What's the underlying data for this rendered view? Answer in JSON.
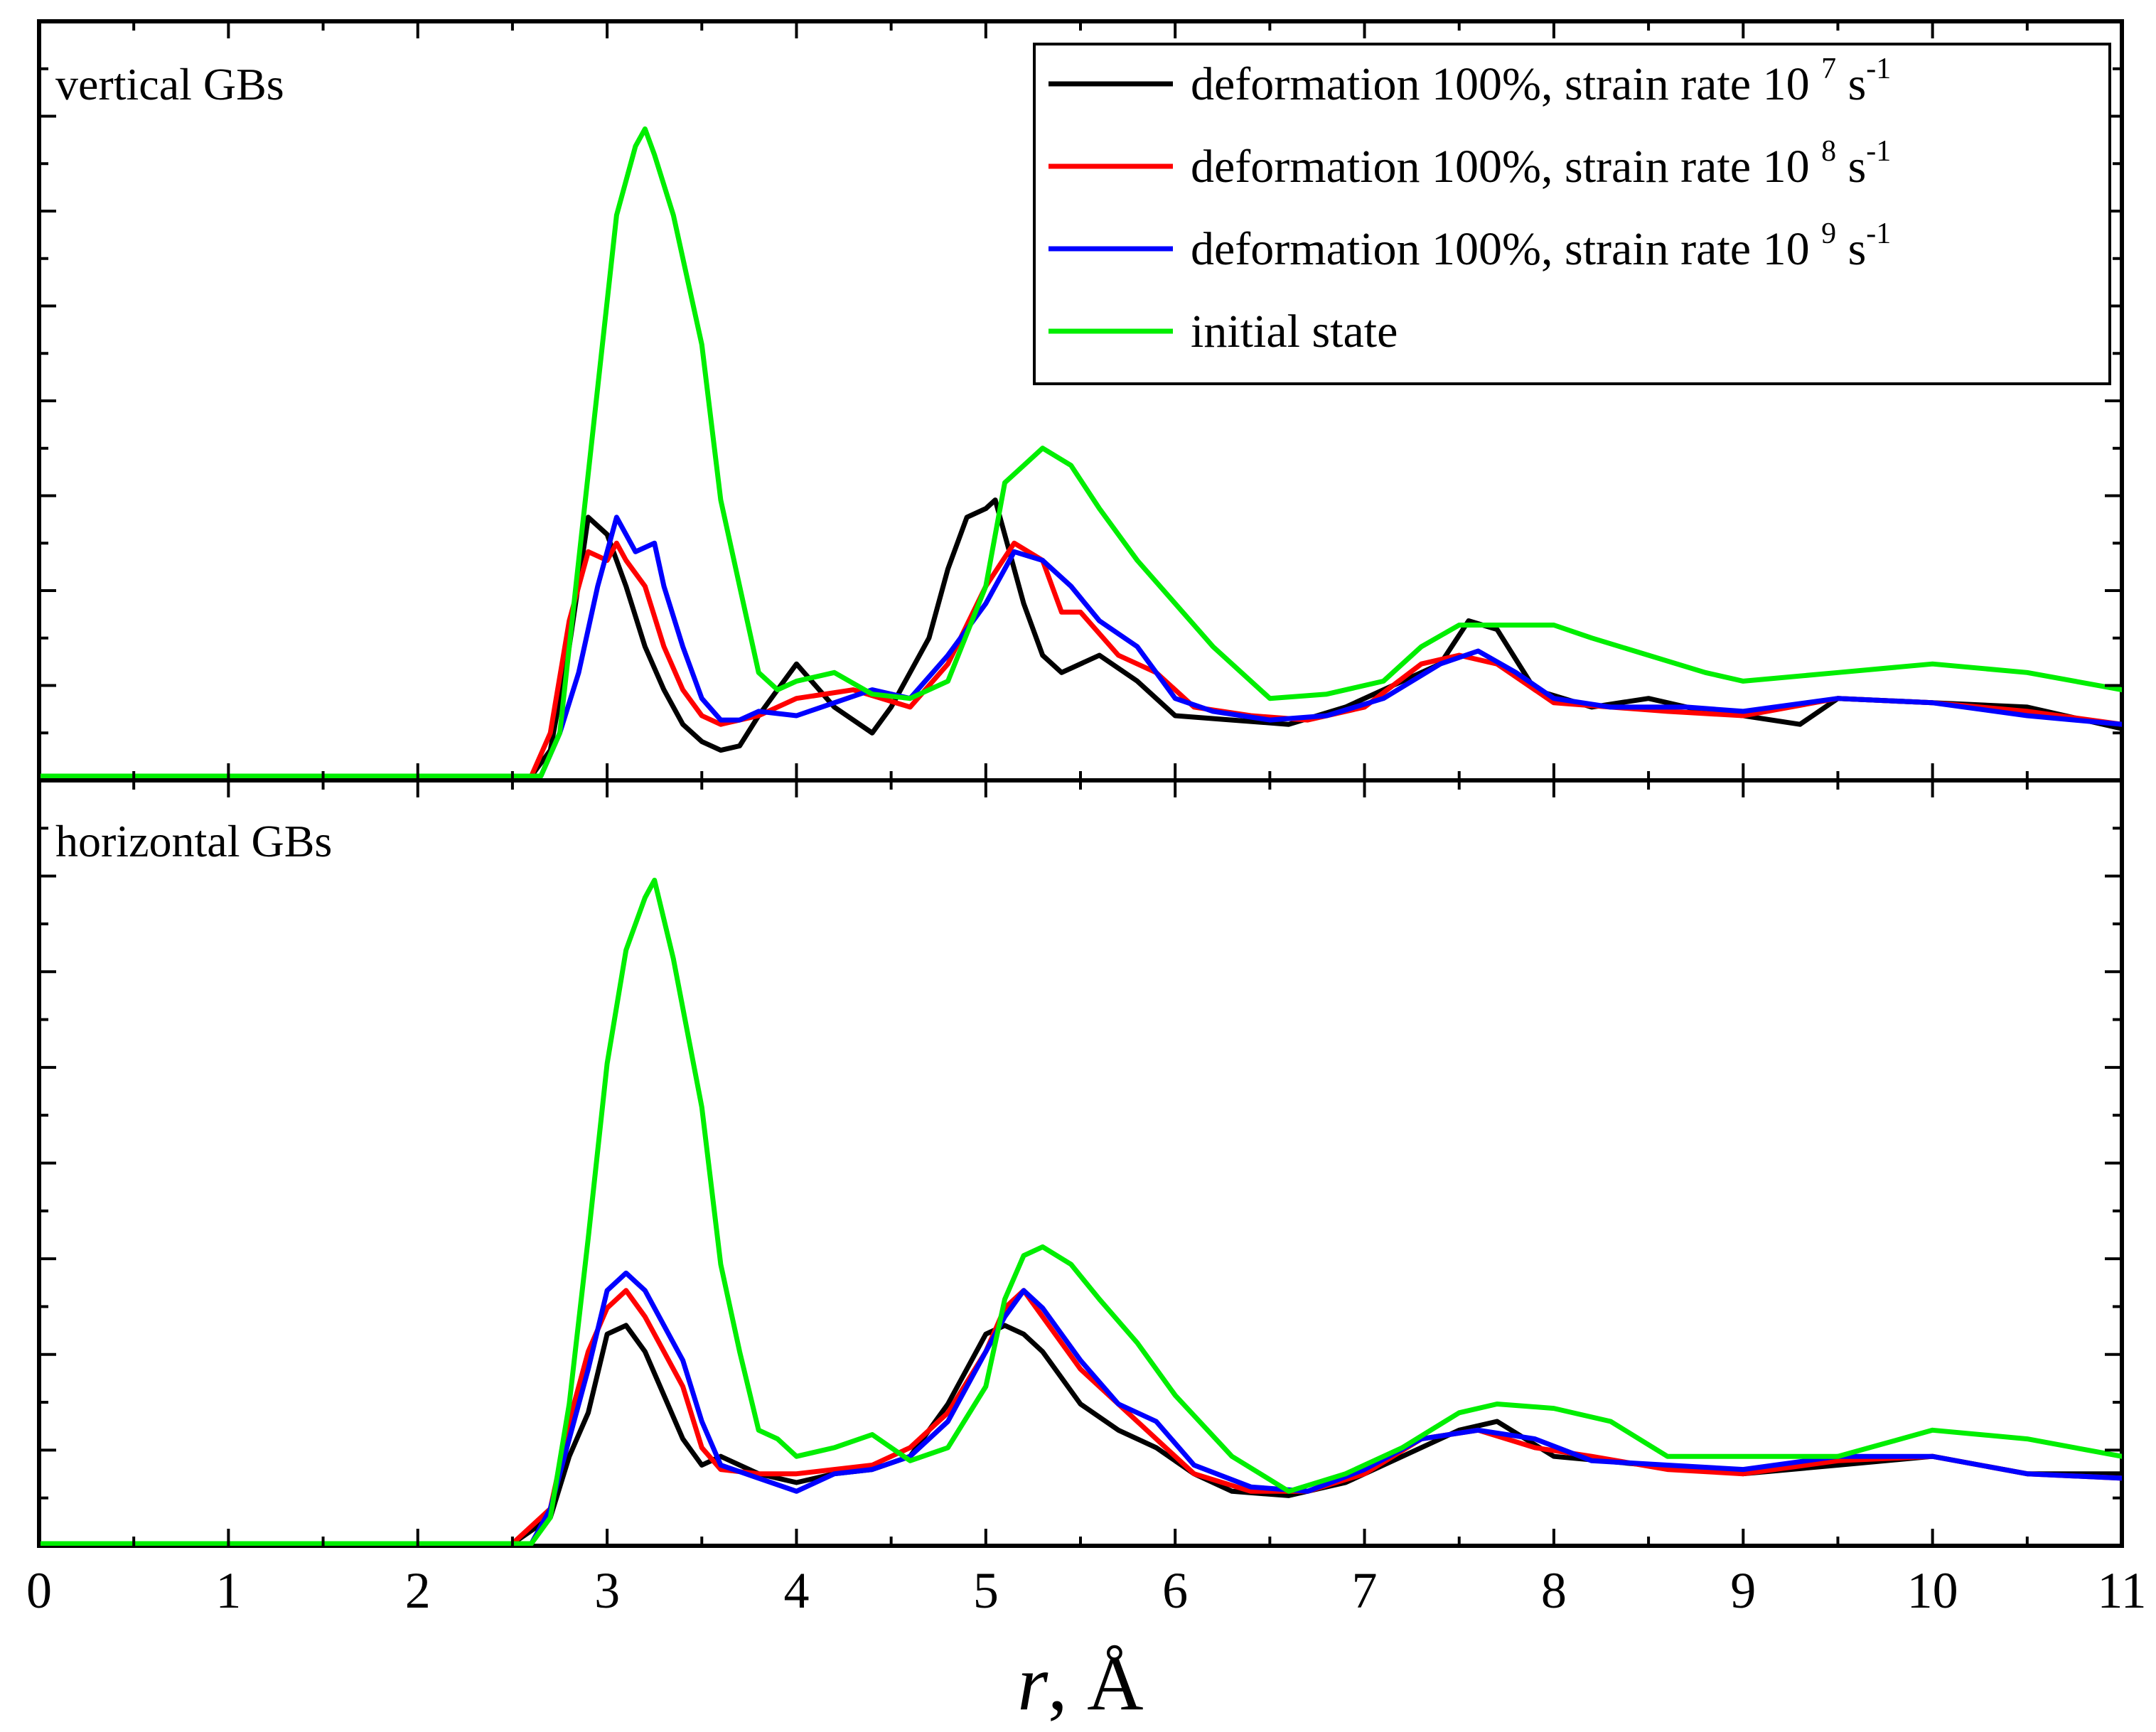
{
  "chart_data": [
    {
      "panel": "top",
      "type": "line",
      "title": "vertical GBs",
      "xlabel": "r, Å",
      "ylabel": "",
      "xlim": [
        0,
        11
      ],
      "ylim": [
        0,
        8.5
      ],
      "x_ticks": [
        "0",
        "1",
        "2",
        "3",
        "4",
        "5",
        "6",
        "7",
        "8",
        "9",
        "10",
        "11"
      ],
      "series": [
        {
          "name": "deformation 100%, strain rate 10 7 s-1",
          "color": "#000000",
          "x": [
            0,
            2.6,
            2.7,
            2.8,
            2.9,
            3.0,
            3.1,
            3.2,
            3.3,
            3.4,
            3.5,
            3.6,
            3.7,
            3.8,
            3.9,
            4.0,
            4.2,
            4.4,
            4.5,
            4.7,
            4.8,
            4.9,
            5.0,
            5.05,
            5.2,
            5.3,
            5.4,
            5.6,
            5.8,
            6.0,
            6.3,
            6.6,
            6.9,
            7.2,
            7.4,
            7.55,
            7.7,
            7.9,
            8.2,
            8.5,
            8.8,
            9.0,
            9.3,
            9.5,
            10.0,
            10.5,
            11.0
          ],
          "y": [
            0,
            0,
            0.3,
            1.5,
            3.0,
            2.8,
            2.2,
            1.5,
            1.0,
            0.6,
            0.4,
            0.3,
            0.35,
            0.7,
            1.0,
            1.3,
            0.8,
            0.5,
            0.8,
            1.6,
            2.4,
            3.0,
            3.1,
            3.2,
            2.0,
            1.4,
            1.2,
            1.4,
            1.1,
            0.7,
            0.65,
            0.6,
            0.8,
            1.1,
            1.3,
            1.8,
            1.7,
            1.0,
            0.8,
            0.9,
            0.75,
            0.7,
            0.6,
            0.9,
            0.85,
            0.8,
            0.55
          ]
        },
        {
          "name": "deformation 100%, strain rate 10 8 s-1",
          "color": "#ff0000",
          "x": [
            0,
            2.6,
            2.7,
            2.8,
            2.9,
            3.0,
            3.05,
            3.1,
            3.2,
            3.3,
            3.4,
            3.5,
            3.6,
            3.7,
            3.8,
            4.0,
            4.3,
            4.6,
            4.8,
            5.0,
            5.15,
            5.3,
            5.4,
            5.5,
            5.7,
            5.9,
            6.1,
            6.4,
            6.7,
            7.0,
            7.3,
            7.5,
            7.7,
            8.0,
            8.3,
            8.6,
            9.0,
            9.5,
            10.0,
            10.5,
            11.0
          ],
          "y": [
            0,
            0,
            0.5,
            1.8,
            2.6,
            2.5,
            2.7,
            2.5,
            2.2,
            1.5,
            1.0,
            0.7,
            0.6,
            0.65,
            0.7,
            0.9,
            1.0,
            0.8,
            1.3,
            2.2,
            2.7,
            2.5,
            1.9,
            1.9,
            1.4,
            1.2,
            0.8,
            0.7,
            0.65,
            0.8,
            1.3,
            1.4,
            1.3,
            0.85,
            0.8,
            0.75,
            0.7,
            0.9,
            0.85,
            0.75,
            0.6
          ]
        },
        {
          "name": "deformation 100%, strain rate 10 9 s-1",
          "color": "#0000ff",
          "x": [
            0,
            2.65,
            2.75,
            2.85,
            2.95,
            3.05,
            3.15,
            3.25,
            3.3,
            3.4,
            3.5,
            3.6,
            3.7,
            3.8,
            4.0,
            4.2,
            4.4,
            4.6,
            4.8,
            5.0,
            5.15,
            5.3,
            5.45,
            5.6,
            5.8,
            6.0,
            6.2,
            6.5,
            6.8,
            7.1,
            7.4,
            7.6,
            7.8,
            8.0,
            8.3,
            8.7,
            9.0,
            9.5,
            10.0,
            10.5,
            11.0
          ],
          "y": [
            0,
            0,
            0.5,
            1.2,
            2.2,
            3.0,
            2.6,
            2.7,
            2.2,
            1.5,
            0.9,
            0.65,
            0.65,
            0.75,
            0.7,
            0.85,
            1.0,
            0.9,
            1.4,
            2.0,
            2.6,
            2.5,
            2.2,
            1.8,
            1.5,
            0.9,
            0.75,
            0.65,
            0.7,
            0.9,
            1.3,
            1.45,
            1.2,
            0.9,
            0.8,
            0.8,
            0.75,
            0.9,
            0.85,
            0.7,
            0.6
          ]
        },
        {
          "name": "initial state",
          "color": "#00ee00",
          "x": [
            0,
            2.65,
            2.75,
            2.85,
            2.95,
            3.05,
            3.15,
            3.2,
            3.25,
            3.35,
            3.5,
            3.6,
            3.7,
            3.8,
            3.9,
            4.0,
            4.2,
            4.4,
            4.6,
            4.8,
            5.0,
            5.1,
            5.2,
            5.3,
            5.45,
            5.6,
            5.8,
            6.0,
            6.2,
            6.5,
            6.8,
            7.1,
            7.3,
            7.5,
            7.7,
            8.0,
            8.2,
            8.5,
            8.8,
            9.0,
            9.5,
            10.0,
            10.5,
            11.0
          ],
          "y": [
            0,
            0,
            0.5,
            2.5,
            4.5,
            6.5,
            7.3,
            7.5,
            7.2,
            6.5,
            5.0,
            3.2,
            2.2,
            1.2,
            1.0,
            1.1,
            1.2,
            0.95,
            0.9,
            1.1,
            2.2,
            3.4,
            3.6,
            3.8,
            3.6,
            3.1,
            2.5,
            2.0,
            1.5,
            0.9,
            0.95,
            1.1,
            1.5,
            1.75,
            1.75,
            1.75,
            1.6,
            1.4,
            1.2,
            1.1,
            1.2,
            1.3,
            1.2,
            1.0
          ]
        }
      ]
    },
    {
      "panel": "bottom",
      "type": "line",
      "title": "horizontal GBs",
      "xlabel": "r, Å",
      "ylabel": "",
      "xlim": [
        0,
        11
      ],
      "ylim": [
        0,
        8.5
      ],
      "x_ticks": [
        "0",
        "1",
        "2",
        "3",
        "4",
        "5",
        "6",
        "7",
        "8",
        "9",
        "10",
        "11"
      ],
      "series": [
        {
          "name": "deformation 100%, strain rate 10 7 s-1",
          "color": "#000000",
          "x": [
            0,
            2.5,
            2.7,
            2.8,
            2.9,
            3.0,
            3.1,
            3.2,
            3.3,
            3.4,
            3.5,
            3.6,
            3.8,
            4.0,
            4.2,
            4.4,
            4.6,
            4.8,
            5.0,
            5.1,
            5.2,
            5.3,
            5.5,
            5.7,
            5.9,
            6.1,
            6.3,
            6.6,
            6.9,
            7.2,
            7.5,
            7.7,
            8.0,
            8.5,
            9.0,
            9.5,
            10.0,
            10.5,
            11.0
          ],
          "y": [
            0,
            0,
            0.3,
            1.0,
            1.5,
            2.4,
            2.5,
            2.2,
            1.7,
            1.2,
            0.9,
            1.0,
            0.8,
            0.7,
            0.8,
            0.85,
            1.0,
            1.6,
            2.4,
            2.5,
            2.4,
            2.2,
            1.6,
            1.3,
            1.1,
            0.8,
            0.6,
            0.55,
            0.7,
            1.0,
            1.3,
            1.4,
            1.0,
            0.9,
            0.8,
            0.9,
            1.0,
            0.8,
            0.8
          ]
        },
        {
          "name": "deformation 100%, strain rate 10 8 s-1",
          "color": "#ff0000",
          "x": [
            0,
            2.5,
            2.7,
            2.8,
            2.9,
            3.0,
            3.1,
            3.2,
            3.3,
            3.4,
            3.5,
            3.6,
            3.8,
            4.0,
            4.2,
            4.4,
            4.6,
            4.8,
            5.0,
            5.1,
            5.2,
            5.3,
            5.5,
            5.7,
            5.9,
            6.1,
            6.4,
            6.7,
            7.0,
            7.3,
            7.6,
            7.9,
            8.2,
            8.6,
            9.0,
            9.5,
            10.0,
            10.5,
            11.0
          ],
          "y": [
            0,
            0,
            0.4,
            1.4,
            2.2,
            2.7,
            2.9,
            2.6,
            2.2,
            1.8,
            1.1,
            0.85,
            0.8,
            0.8,
            0.85,
            0.9,
            1.1,
            1.5,
            2.2,
            2.7,
            2.9,
            2.6,
            2.0,
            1.6,
            1.2,
            0.8,
            0.6,
            0.6,
            0.8,
            1.2,
            1.3,
            1.1,
            1.0,
            0.85,
            0.8,
            0.95,
            1.0,
            0.8,
            0.75
          ]
        },
        {
          "name": "deformation 100%, strain rate 10 9 s-1",
          "color": "#0000ff",
          "x": [
            0,
            2.6,
            2.7,
            2.8,
            2.9,
            3.0,
            3.1,
            3.2,
            3.3,
            3.4,
            3.5,
            3.6,
            3.8,
            4.0,
            4.2,
            4.4,
            4.6,
            4.8,
            5.0,
            5.1,
            5.2,
            5.3,
            5.5,
            5.7,
            5.9,
            6.1,
            6.4,
            6.7,
            7.0,
            7.3,
            7.6,
            7.9,
            8.2,
            8.6,
            9.0,
            9.5,
            10.0,
            10.5,
            11.0
          ],
          "y": [
            0,
            0,
            0.4,
            1.2,
            2.0,
            2.9,
            3.1,
            2.9,
            2.5,
            2.1,
            1.4,
            0.9,
            0.75,
            0.6,
            0.8,
            0.85,
            1.0,
            1.4,
            2.2,
            2.6,
            2.9,
            2.7,
            2.1,
            1.6,
            1.4,
            0.9,
            0.65,
            0.6,
            0.85,
            1.2,
            1.3,
            1.2,
            0.95,
            0.9,
            0.85,
            1.0,
            1.0,
            0.8,
            0.75
          ]
        },
        {
          "name": "initial state",
          "color": "#00ee00",
          "x": [
            0,
            2.6,
            2.7,
            2.8,
            2.9,
            3.0,
            3.1,
            3.2,
            3.25,
            3.35,
            3.5,
            3.6,
            3.7,
            3.8,
            3.9,
            4.0,
            4.2,
            4.4,
            4.6,
            4.8,
            5.0,
            5.1,
            5.2,
            5.3,
            5.45,
            5.6,
            5.8,
            6.0,
            6.3,
            6.6,
            6.9,
            7.2,
            7.5,
            7.7,
            8.0,
            8.3,
            8.6,
            9.0,
            9.5,
            10.0,
            10.5,
            11.0
          ],
          "y": [
            0,
            0,
            0.3,
            1.6,
            3.5,
            5.5,
            6.8,
            7.4,
            7.6,
            6.7,
            5.0,
            3.2,
            2.2,
            1.3,
            1.2,
            1.0,
            1.1,
            1.25,
            0.95,
            1.1,
            1.8,
            2.8,
            3.3,
            3.4,
            3.2,
            2.8,
            2.3,
            1.7,
            1.0,
            0.6,
            0.8,
            1.1,
            1.5,
            1.6,
            1.55,
            1.4,
            1.0,
            1.0,
            1.0,
            1.3,
            1.2,
            1.0
          ]
        }
      ]
    }
  ],
  "legend": {
    "items": [
      {
        "prefix": "deformation 100%, strain rate 10 ",
        "exp": "7",
        "suffix": " s",
        "sup2": "-1",
        "color": "#000000"
      },
      {
        "prefix": "deformation 100%, strain rate 10 ",
        "exp": "8",
        "suffix": " s",
        "sup2": "-1",
        "color": "#ff0000"
      },
      {
        "prefix": "deformation 100%, strain rate 10 ",
        "exp": "9",
        "suffix": " s",
        "sup2": "-1",
        "color": "#0000ff"
      },
      {
        "prefix": "initial state",
        "exp": "",
        "suffix": "",
        "sup2": "",
        "color": "#00ee00"
      }
    ]
  },
  "axis_title": {
    "var": "r",
    "rest": ", Å"
  }
}
